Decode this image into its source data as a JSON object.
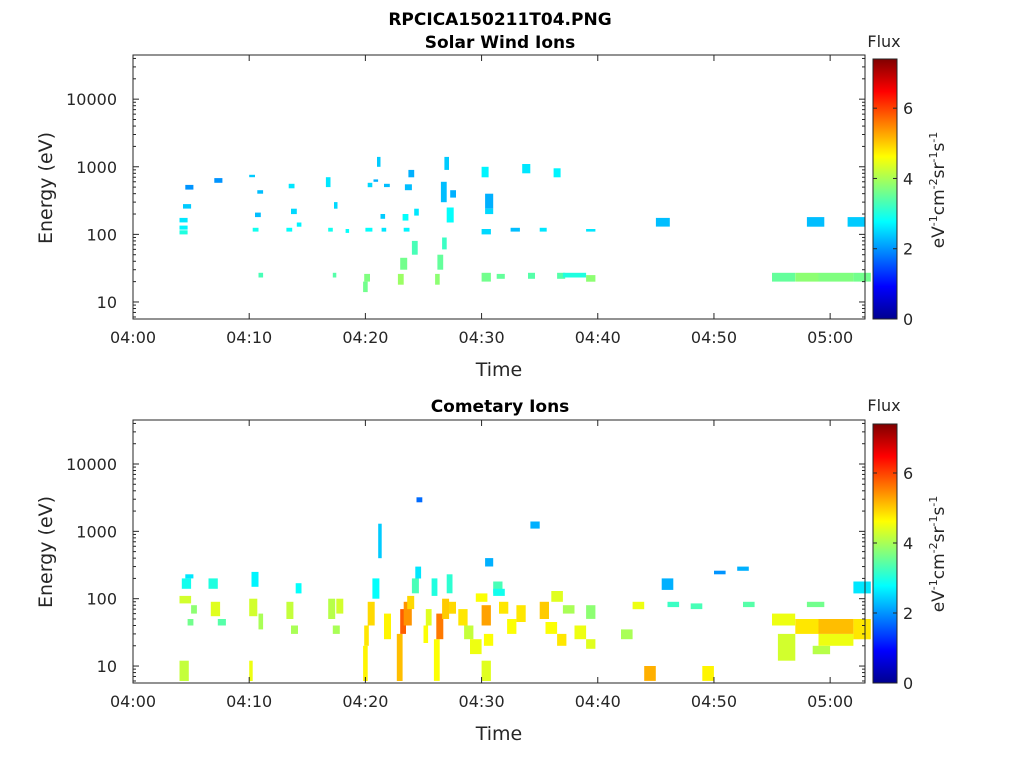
{
  "figure_title": "RPCICA150211T04.PNG",
  "chart_data": [
    {
      "type": "heatmap",
      "title": "Solar Wind Ions",
      "xlabel": "Time",
      "ylabel": "Energy (eV)",
      "x_ticks": [
        "04:00",
        "04:10",
        "04:20",
        "04:30",
        "04:40",
        "04:50",
        "05:00"
      ],
      "y_ticks": [
        "10",
        "100",
        "1000",
        "10000"
      ],
      "y_scale": "log",
      "colorbar": {
        "label": "Flux",
        "unit_main": "eV",
        "ticks": [
          "0",
          "2",
          "4",
          "6"
        ],
        "range": [
          0,
          7.4
        ]
      },
      "patches": [
        [
          4.0,
          4.7,
          100,
          115,
          3.0
        ],
        [
          4.0,
          4.7,
          118,
          135,
          2.7
        ],
        [
          4.0,
          4.7,
          150,
          175,
          2.6
        ],
        [
          4.3,
          5.0,
          240,
          280,
          2.4
        ],
        [
          4.5,
          5.2,
          460,
          540,
          2.0
        ],
        [
          7.0,
          7.7,
          580,
          680,
          2.0
        ],
        [
          10.3,
          10.8,
          110,
          125,
          2.9
        ],
        [
          10.0,
          10.5,
          700,
          760,
          2.4
        ],
        [
          10.5,
          11.0,
          180,
          210,
          2.3
        ],
        [
          10.7,
          11.2,
          400,
          450,
          2.3
        ],
        [
          10.8,
          11.2,
          23,
          27,
          3.3
        ],
        [
          13.2,
          13.7,
          110,
          125,
          2.8
        ],
        [
          13.4,
          13.9,
          480,
          560,
          2.6
        ],
        [
          13.6,
          14.1,
          200,
          240,
          2.5
        ],
        [
          14.1,
          14.5,
          130,
          150,
          2.7
        ],
        [
          16.8,
          17.2,
          110,
          125,
          2.9
        ],
        [
          16.6,
          17.0,
          500,
          700,
          2.6
        ],
        [
          17.3,
          17.6,
          240,
          300,
          2.5
        ],
        [
          17.2,
          17.5,
          23,
          27,
          3.4
        ],
        [
          18.3,
          18.6,
          105,
          120,
          2.8
        ],
        [
          19.8,
          20.2,
          14,
          20,
          3.6
        ],
        [
          19.9,
          20.4,
          20,
          26,
          3.7
        ],
        [
          20.0,
          20.6,
          110,
          125,
          2.8
        ],
        [
          20.2,
          20.6,
          500,
          580,
          2.5
        ],
        [
          20.7,
          21.1,
          600,
          650,
          2.2
        ],
        [
          21.0,
          21.3,
          1000,
          1400,
          2.4
        ],
        [
          21.4,
          21.8,
          110,
          125,
          2.6
        ],
        [
          21.6,
          22.1,
          500,
          560,
          2.3
        ],
        [
          21.3,
          21.7,
          170,
          200,
          2.4
        ],
        [
          22.8,
          23.3,
          18,
          26,
          3.9
        ],
        [
          23.0,
          23.6,
          30,
          45,
          3.6
        ],
        [
          23.3,
          23.8,
          110,
          125,
          2.7
        ],
        [
          23.2,
          23.7,
          160,
          200,
          2.8
        ],
        [
          23.4,
          24.0,
          450,
          550,
          2.3
        ],
        [
          23.7,
          24.2,
          700,
          900,
          2.2
        ],
        [
          24.2,
          24.6,
          190,
          240,
          2.6
        ],
        [
          24.0,
          24.5,
          50,
          80,
          3.3
        ],
        [
          26.0,
          26.4,
          18,
          26,
          3.8
        ],
        [
          26.2,
          26.7,
          30,
          50,
          3.5
        ],
        [
          26.6,
          27.0,
          60,
          90,
          3.2
        ],
        [
          26.5,
          27.0,
          300,
          600,
          2.3
        ],
        [
          26.8,
          27.2,
          900,
          1400,
          2.4
        ],
        [
          27.0,
          27.6,
          150,
          250,
          2.8
        ],
        [
          27.3,
          27.8,
          350,
          450,
          2.2
        ],
        [
          30.0,
          30.8,
          20,
          27,
          3.6
        ],
        [
          30.0,
          30.8,
          100,
          120,
          2.5
        ],
        [
          30.0,
          30.6,
          700,
          1000,
          2.7
        ],
        [
          30.3,
          31.0,
          240,
          400,
          2.2
        ],
        [
          30.3,
          31.0,
          200,
          240,
          2.5
        ],
        [
          31.3,
          32.0,
          22,
          26,
          3.5
        ],
        [
          32.5,
          33.3,
          110,
          125,
          2.3
        ],
        [
          33.5,
          34.2,
          800,
          1100,
          2.6
        ],
        [
          34.0,
          34.6,
          22,
          27,
          3.4
        ],
        [
          35.0,
          35.6,
          110,
          125,
          2.6
        ],
        [
          36.2,
          36.8,
          700,
          950,
          2.7
        ],
        [
          36.5,
          37.2,
          22,
          27,
          3.4
        ],
        [
          37.0,
          38.0,
          23,
          27,
          3.0
        ],
        [
          38.0,
          39.0,
          23,
          27,
          3.0
        ],
        [
          39.0,
          39.8,
          20,
          25,
          3.8
        ],
        [
          39.0,
          39.8,
          110,
          120,
          2.6
        ],
        [
          45.0,
          46.2,
          130,
          175,
          2.3
        ],
        [
          55.0,
          57.0,
          20,
          27,
          3.5
        ],
        [
          57.0,
          59.0,
          20,
          27,
          3.8
        ],
        [
          58.0,
          59.5,
          130,
          180,
          2.3
        ],
        [
          59.0,
          62.0,
          20,
          27,
          3.7
        ],
        [
          62.0,
          63.5,
          20,
          27,
          3.6
        ],
        [
          61.5,
          63.0,
          130,
          180,
          2.4
        ]
      ]
    },
    {
      "type": "heatmap",
      "title": "Cometary Ions",
      "xlabel": "Time",
      "ylabel": "Energy (eV)",
      "x_ticks": [
        "04:00",
        "04:10",
        "04:20",
        "04:30",
        "04:40",
        "04:50",
        "05:00"
      ],
      "y_ticks": [
        "10",
        "100",
        "1000",
        "10000"
      ],
      "y_scale": "log",
      "colorbar": {
        "label": "Flux",
        "unit_main": "eV",
        "ticks": [
          "0",
          "2",
          "4",
          "6"
        ],
        "range": [
          0,
          7.4
        ]
      },
      "patches": [
        [
          4.0,
          4.8,
          6,
          12,
          4.2
        ],
        [
          4.0,
          5.0,
          85,
          110,
          4.3
        ],
        [
          4.2,
          5.0,
          140,
          200,
          2.9
        ],
        [
          4.5,
          5.2,
          200,
          230,
          2.6
        ],
        [
          5.0,
          5.5,
          60,
          80,
          3.8
        ],
        [
          4.7,
          5.2,
          40,
          50,
          3.6
        ],
        [
          6.7,
          7.5,
          55,
          90,
          4.4
        ],
        [
          7.3,
          8.0,
          40,
          50,
          3.4
        ],
        [
          6.5,
          7.3,
          140,
          200,
          3.0
        ],
        [
          10.0,
          10.3,
          6,
          12,
          4.5
        ],
        [
          10.0,
          10.7,
          55,
          100,
          4.3
        ],
        [
          10.2,
          10.8,
          150,
          250,
          2.7
        ],
        [
          10.8,
          11.2,
          35,
          60,
          4.0
        ],
        [
          13.2,
          13.8,
          50,
          90,
          4.2
        ],
        [
          13.6,
          14.2,
          30,
          40,
          4.0
        ],
        [
          14.0,
          14.5,
          120,
          170,
          2.8
        ],
        [
          16.8,
          17.4,
          50,
          100,
          4.1
        ],
        [
          17.2,
          17.8,
          30,
          40,
          4.0
        ],
        [
          17.5,
          18.1,
          60,
          100,
          4.3
        ],
        [
          19.8,
          20.2,
          6,
          20,
          4.7
        ],
        [
          19.9,
          20.3,
          20,
          40,
          4.8
        ],
        [
          20.2,
          20.8,
          40,
          90,
          4.9
        ],
        [
          20.6,
          21.2,
          100,
          200,
          2.8
        ],
        [
          21.1,
          21.4,
          400,
          1300,
          2.4
        ],
        [
          21.6,
          22.2,
          25,
          60,
          4.7
        ],
        [
          22.7,
          23.2,
          6,
          30,
          5.1
        ],
        [
          23.0,
          23.5,
          30,
          70,
          5.8
        ],
        [
          23.3,
          24.0,
          40,
          90,
          5.4
        ],
        [
          23.6,
          24.2,
          70,
          110,
          4.9
        ],
        [
          24.0,
          24.6,
          120,
          200,
          3.3
        ],
        [
          24.3,
          24.8,
          200,
          300,
          2.6
        ],
        [
          24.4,
          24.9,
          2700,
          3200,
          1.7
        ],
        [
          25.0,
          25.4,
          22,
          40,
          4.6
        ],
        [
          25.2,
          25.7,
          40,
          70,
          4.4
        ],
        [
          25.7,
          26.2,
          110,
          200,
          3.0
        ],
        [
          25.9,
          26.4,
          6,
          25,
          4.6
        ],
        [
          26.1,
          26.7,
          25,
          60,
          5.6
        ],
        [
          26.6,
          27.2,
          50,
          100,
          5.0
        ],
        [
          27.0,
          27.5,
          120,
          230,
          3.1
        ],
        [
          27.2,
          27.8,
          60,
          90,
          4.9
        ],
        [
          28.0,
          28.8,
          40,
          70,
          4.8
        ],
        [
          28.5,
          29.3,
          25,
          40,
          4.2
        ],
        [
          29.0,
          30.0,
          15,
          25,
          4.5
        ],
        [
          29.5,
          30.5,
          90,
          120,
          4.6
        ],
        [
          30.0,
          30.8,
          40,
          80,
          5.3
        ],
        [
          30.0,
          30.8,
          6,
          12,
          4.4
        ],
        [
          30.2,
          31.0,
          20,
          30,
          4.6
        ],
        [
          30.3,
          31.0,
          300,
          400,
          2.2
        ],
        [
          31.0,
          31.8,
          120,
          180,
          3.3
        ],
        [
          31.5,
          32.3,
          60,
          90,
          4.8
        ],
        [
          31.0,
          32.0,
          110,
          140,
          2.9
        ],
        [
          32.2,
          33.0,
          30,
          50,
          4.6
        ],
        [
          33.0,
          33.8,
          45,
          80,
          4.8
        ],
        [
          34.2,
          35.0,
          1100,
          1400,
          2.2
        ],
        [
          35.0,
          35.8,
          50,
          90,
          5.0
        ],
        [
          35.5,
          36.5,
          30,
          45,
          4.6
        ],
        [
          36.0,
          37.0,
          90,
          130,
          4.4
        ],
        [
          36.5,
          37.3,
          20,
          30,
          4.8
        ],
        [
          37.0,
          38.0,
          60,
          80,
          4.0
        ],
        [
          38.0,
          39.0,
          25,
          40,
          4.5
        ],
        [
          39.0,
          39.8,
          18,
          25,
          4.4
        ],
        [
          39.0,
          39.8,
          50,
          80,
          3.8
        ],
        [
          42.0,
          43.0,
          25,
          35,
          4.0
        ],
        [
          43.0,
          44.0,
          70,
          90,
          4.5
        ],
        [
          44.0,
          45.0,
          6,
          10,
          5.2
        ],
        [
          45.5,
          46.5,
          135,
          200,
          2.2
        ],
        [
          46.0,
          47.0,
          75,
          90,
          3.2
        ],
        [
          48.0,
          49.0,
          70,
          85,
          3.3
        ],
        [
          49.0,
          50.0,
          6,
          10,
          4.7
        ],
        [
          50.0,
          51.0,
          230,
          260,
          2.0
        ],
        [
          52.0,
          53.0,
          260,
          300,
          2.2
        ],
        [
          52.5,
          53.5,
          75,
          90,
          3.4
        ],
        [
          55.0,
          57.0,
          40,
          60,
          4.5
        ],
        [
          55.5,
          57.0,
          12,
          30,
          4.3
        ],
        [
          57.0,
          59.0,
          30,
          50,
          4.8
        ],
        [
          58.0,
          59.5,
          75,
          90,
          3.6
        ],
        [
          58.5,
          60.0,
          15,
          20,
          4.1
        ],
        [
          59.0,
          62.0,
          20,
          30,
          4.5
        ],
        [
          59.0,
          62.0,
          30,
          50,
          5.1
        ],
        [
          62.0,
          63.5,
          25,
          50,
          4.8
        ],
        [
          62.0,
          63.5,
          120,
          180,
          2.6
        ]
      ]
    }
  ]
}
